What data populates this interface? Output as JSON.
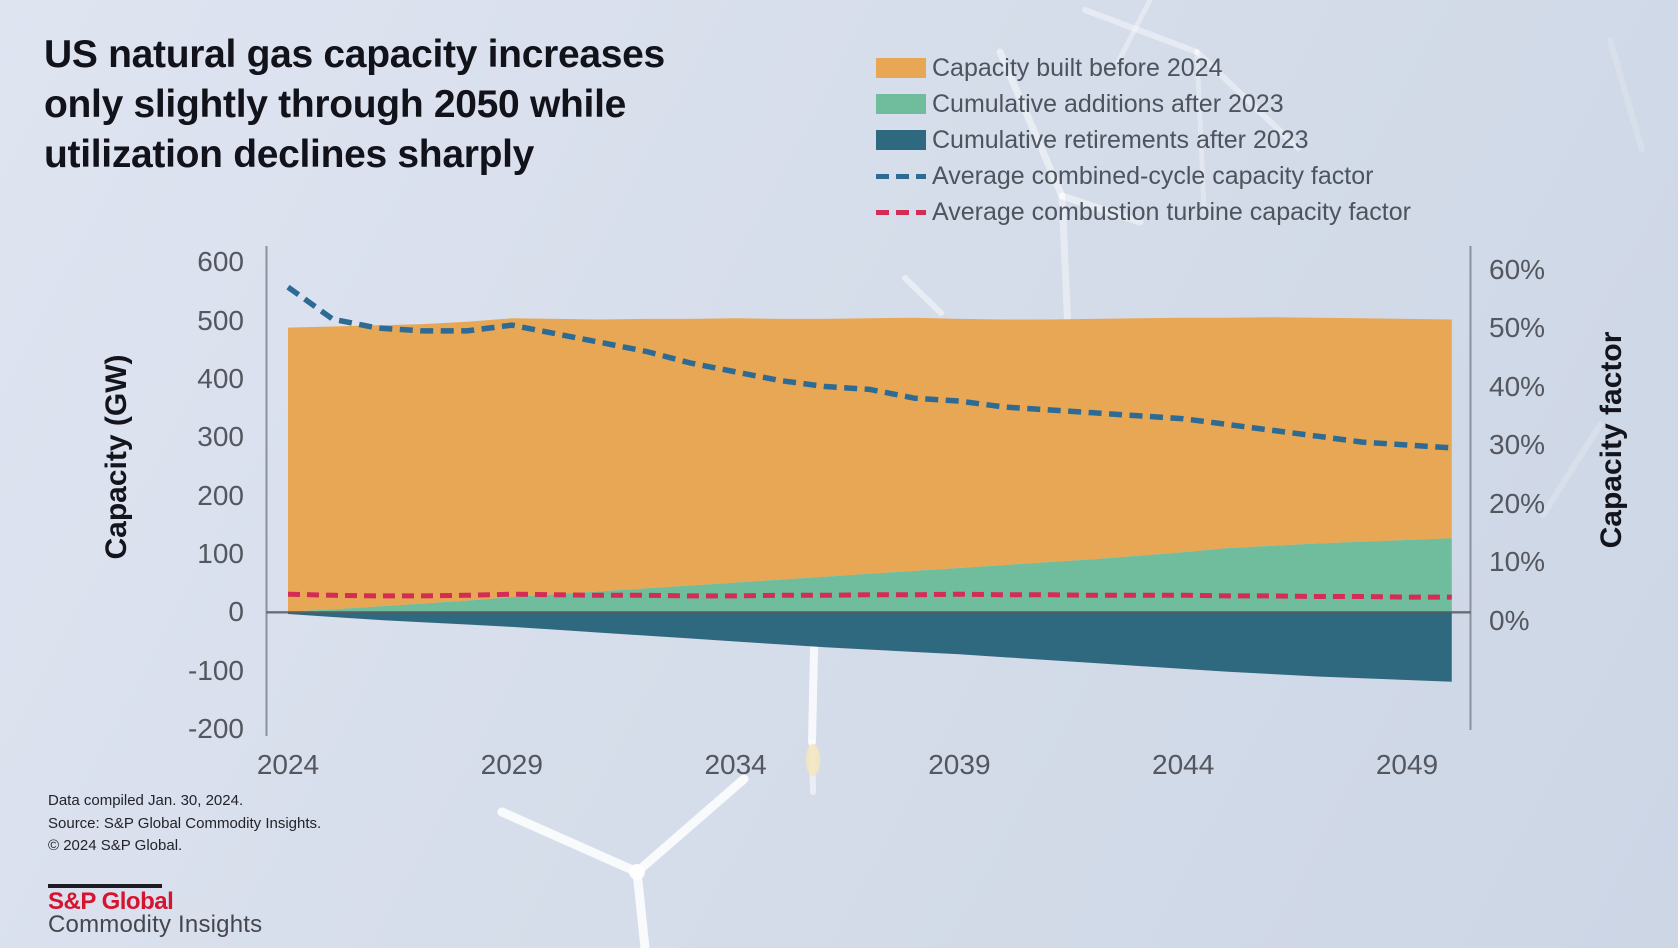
{
  "title": {
    "lines": [
      "US natural gas capacity increases",
      "only slightly through 2050 while",
      "utilization declines sharply"
    ]
  },
  "legend": {
    "items": [
      {
        "label": "Capacity built before 2024",
        "swatch": "area",
        "color": "#E7A754"
      },
      {
        "label": "Cumulative additions after 2023",
        "swatch": "area",
        "color": "#6FBD9C"
      },
      {
        "label": "Cumulative retirements after 2023",
        "swatch": "area",
        "color": "#2F6980"
      },
      {
        "label": "Average combined-cycle capacity factor",
        "swatch": "dash",
        "color": "#2E6B94"
      },
      {
        "label": "Average combustion turbine capacity factor",
        "swatch": "dash",
        "color": "#D32D55"
      }
    ]
  },
  "chart_data": {
    "type": "area",
    "x": [
      2024,
      2025,
      2026,
      2027,
      2028,
      2029,
      2030,
      2031,
      2032,
      2033,
      2034,
      2035,
      2036,
      2037,
      2038,
      2039,
      2040,
      2041,
      2042,
      2043,
      2044,
      2045,
      2046,
      2047,
      2048,
      2049,
      2050
    ],
    "series": [
      {
        "name": "Capacity built before 2024",
        "type": "area",
        "axis": "left",
        "stack": "pos-top",
        "color": "#E7A754",
        "values": [
          487,
          485,
          482,
          479,
          478,
          478,
          472,
          466,
          462,
          457,
          453,
          447,
          442,
          438,
          434,
          427,
          421,
          416,
          412,
          407,
          402,
          395,
          392,
          387,
          383,
          379,
          375
        ]
      },
      {
        "name": "Cumulative additions after 2023",
        "type": "area",
        "axis": "left",
        "stack": "pos-base",
        "color": "#6FBD9C",
        "values": [
          1,
          5,
          10,
          15,
          20,
          26,
          31,
          36,
          41,
          46,
          51,
          56,
          61,
          66,
          71,
          76,
          81,
          86,
          91,
          97,
          103,
          110,
          114,
          118,
          121,
          124,
          127
        ]
      },
      {
        "name": "Cumulative retirements after 2023",
        "type": "area",
        "axis": "left",
        "stack": "neg",
        "color": "#2F6980",
        "values": [
          -3,
          -8,
          -13,
          -17,
          -21,
          -25,
          -30,
          -35,
          -40,
          -45,
          -50,
          -55,
          -60,
          -64,
          -68,
          -72,
          -77,
          -82,
          -87,
          -92,
          -97,
          -102,
          -106,
          -110,
          -113,
          -116,
          -119
        ]
      },
      {
        "name": "Average combined-cycle capacity factor",
        "type": "line",
        "style": "dashed",
        "axis": "right",
        "color": "#2E6B94",
        "values": [
          57,
          51.5,
          50,
          49.5,
          49.5,
          50.5,
          49,
          47.5,
          46,
          44,
          42.5,
          41,
          40,
          39.5,
          38,
          37.5,
          36.5,
          36,
          35.5,
          35,
          34.5,
          33.5,
          32.5,
          31.5,
          30.5,
          30,
          29.5
        ]
      },
      {
        "name": "Average combustion turbine capacity factor",
        "type": "line",
        "style": "dashed",
        "axis": "right",
        "color": "#D32D55",
        "values": [
          4.5,
          4.3,
          4.2,
          4.2,
          4.3,
          4.5,
          4.4,
          4.3,
          4.3,
          4.2,
          4.2,
          4.3,
          4.3,
          4.4,
          4.4,
          4.5,
          4.4,
          4.4,
          4.3,
          4.3,
          4.3,
          4.2,
          4.2,
          4.1,
          4.1,
          4.0,
          4.0
        ]
      }
    ],
    "axes": {
      "left": {
        "label": "Capacity (GW)",
        "ticks": [
          600,
          500,
          400,
          300,
          200,
          100,
          0,
          -100,
          -200
        ],
        "range": [
          -200,
          600
        ]
      },
      "right": {
        "label": "Capacity factor",
        "ticks": [
          "60%",
          "50%",
          "40%",
          "30%",
          "20%",
          "10%",
          "0%"
        ],
        "range": [
          0,
          60
        ]
      },
      "x": {
        "ticks": [
          2024,
          2029,
          2034,
          2039,
          2044,
          2049
        ],
        "range": [
          2024,
          2050
        ]
      }
    },
    "grid": false,
    "legend_position": "top-right"
  },
  "footer": {
    "lines": [
      "Data compiled Jan. 30, 2024.",
      "Source: S&P Global Commodity Insights.",
      "© 2024  S&P Global."
    ]
  },
  "logo": {
    "brand": "S&P Global",
    "division": "Commodity Insights",
    "brand_color": "#D6142F"
  },
  "colors": {
    "background": "#D5DCEA",
    "title_text": "#12121A",
    "axis_text": "#54575F",
    "legend_text": "#4E545E",
    "axis_line": "#8B919D",
    "zero_line": "#555A5E",
    "watermark": "#FFFFFF"
  }
}
